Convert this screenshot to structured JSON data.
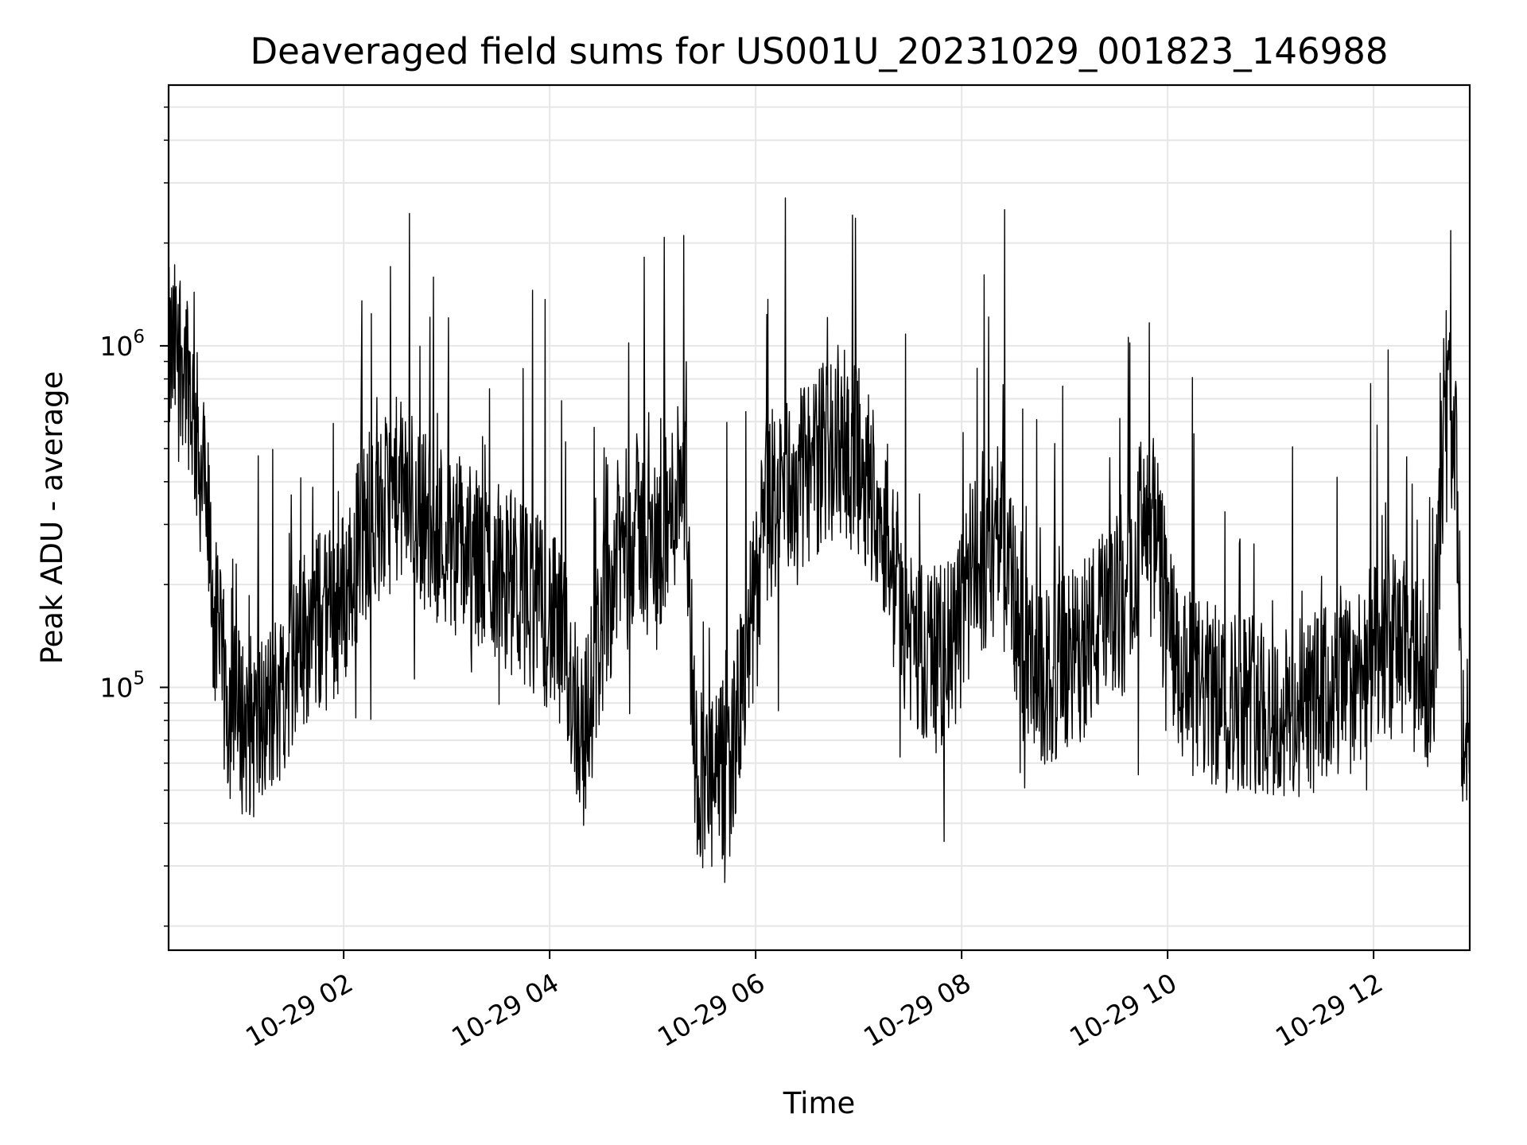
{
  "chart_data": {
    "type": "line",
    "title": "Deaveraged field sums for US001U_20231029_001823_146988",
    "xlabel": "Time",
    "ylabel": "Peak ADU - average",
    "x_ticks": [
      "10-29 02",
      "10-29 04",
      "10-29 06",
      "10-29 08",
      "10-29 10",
      "10-29 12"
    ],
    "y_ticks": [
      {
        "value": 100000,
        "base": "10",
        "exp": "5"
      },
      {
        "value": 1000000,
        "base": "10",
        "exp": "6"
      }
    ],
    "xlim": [
      "2023-10-29 00:18",
      "2023-10-29 12:56"
    ],
    "ylim": [
      17000,
      5800000
    ],
    "y_scale": "log",
    "grid": true,
    "line_color": "#000000",
    "grid_color": "#e6e6e6",
    "series": [
      {
        "x": [
          "2023-10-29 00:18",
          "2023-10-29 00:25",
          "2023-10-29 00:30",
          "2023-10-29 00:35",
          "2023-10-29 00:40",
          "2023-10-29 00:45",
          "2023-10-29 00:52",
          "2023-10-29 01:00",
          "2023-10-29 01:10",
          "2023-10-29 01:20",
          "2023-10-29 01:30",
          "2023-10-29 01:40",
          "2023-10-29 01:50",
          "2023-10-29 02:00",
          "2023-10-29 02:10",
          "2023-10-29 02:20",
          "2023-10-29 02:30",
          "2023-10-29 02:40",
          "2023-10-29 02:50",
          "2023-10-29 03:00",
          "2023-10-29 03:10",
          "2023-10-29 03:20",
          "2023-10-29 03:30",
          "2023-10-29 03:40",
          "2023-10-29 03:50",
          "2023-10-29 04:00",
          "2023-10-29 04:10",
          "2023-10-29 04:20",
          "2023-10-29 04:30",
          "2023-10-29 04:40",
          "2023-10-29 04:50",
          "2023-10-29 05:00",
          "2023-10-29 05:10",
          "2023-10-29 05:18",
          "2023-10-29 05:25",
          "2023-10-29 05:35",
          "2023-10-29 05:45",
          "2023-10-29 05:55",
          "2023-10-29 06:05",
          "2023-10-29 06:15",
          "2023-10-29 06:25",
          "2023-10-29 06:35",
          "2023-10-29 06:45",
          "2023-10-29 06:55",
          "2023-10-29 07:05",
          "2023-10-29 07:15",
          "2023-10-29 07:25",
          "2023-10-29 07:35",
          "2023-10-29 07:45",
          "2023-10-29 07:55",
          "2023-10-29 08:05",
          "2023-10-29 08:15",
          "2023-10-29 08:25",
          "2023-10-29 08:35",
          "2023-10-29 08:45",
          "2023-10-29 08:55",
          "2023-10-29 09:05",
          "2023-10-29 09:15",
          "2023-10-29 09:25",
          "2023-10-29 09:35",
          "2023-10-29 09:45",
          "2023-10-29 09:55",
          "2023-10-29 10:05",
          "2023-10-29 10:15",
          "2023-10-29 10:25",
          "2023-10-29 10:35",
          "2023-10-29 10:45",
          "2023-10-29 10:55",
          "2023-10-29 11:05",
          "2023-10-29 11:15",
          "2023-10-29 11:25",
          "2023-10-29 11:35",
          "2023-10-29 11:45",
          "2023-10-29 11:55",
          "2023-10-29 12:05",
          "2023-10-29 12:15",
          "2023-10-29 12:25",
          "2023-10-29 12:35",
          "2023-10-29 12:42",
          "2023-10-29 12:48",
          "2023-10-29 12:52",
          "2023-10-29 12:56"
        ],
        "y": [
          900000,
          1000000,
          800000,
          500000,
          350000,
          150000,
          90000,
          80000,
          75000,
          90000,
          120000,
          150000,
          160000,
          180000,
          280000,
          300000,
          380000,
          350000,
          300000,
          280000,
          250000,
          230000,
          220000,
          200000,
          180000,
          160000,
          120000,
          70000,
          150000,
          250000,
          300000,
          250000,
          300000,
          500000,
          60000,
          50000,
          60000,
          120000,
          300000,
          380000,
          400000,
          450000,
          550000,
          500000,
          420000,
          300000,
          150000,
          130000,
          120000,
          130000,
          200000,
          250000,
          300000,
          120000,
          100000,
          110000,
          120000,
          140000,
          160000,
          180000,
          300000,
          250000,
          110000,
          100000,
          95000,
          90000,
          95000,
          90000,
          80000,
          85000,
          90000,
          95000,
          100000,
          120000,
          120000,
          140000,
          110000,
          110000,
          800000,
          500000,
          60000,
          80000
        ]
      }
    ]
  }
}
